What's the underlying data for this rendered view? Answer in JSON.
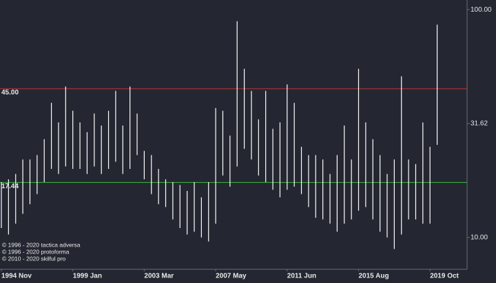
{
  "chart_data": {
    "type": "range-bar",
    "log_scale": true,
    "color": "#ffffff",
    "categories": [
      "1994 Nov",
      null,
      null,
      null,
      null,
      null,
      null,
      null,
      null,
      null,
      "1999 Jan",
      null,
      null,
      null,
      null,
      null,
      null,
      null,
      null,
      null,
      "2003 Mar",
      null,
      null,
      null,
      null,
      null,
      null,
      null,
      null,
      null,
      "2007 May",
      null,
      null,
      null,
      null,
      null,
      null,
      null,
      null,
      null,
      "2011 Jun",
      null,
      null,
      null,
      null,
      null,
      null,
      null,
      null,
      null,
      "2015 Aug",
      null,
      null,
      null,
      null,
      null,
      null,
      null,
      null,
      null,
      "2019 Oct",
      null
    ],
    "high": [
      17.5,
      18,
      19,
      22,
      22,
      23,
      27,
      39,
      32,
      46,
      36,
      32,
      29,
      35,
      31,
      36,
      44,
      31,
      46,
      35,
      24,
      23,
      20,
      18,
      17.5,
      17,
      16,
      17.5,
      15,
      17.5,
      37,
      36,
      28,
      89,
      55,
      44,
      33,
      44,
      30,
      32,
      47,
      39,
      25,
      23,
      23,
      22,
      19,
      23,
      31,
      22,
      55,
      32,
      27,
      23,
      19,
      22,
      51,
      22,
      21,
      32,
      25,
      86
    ],
    "low": [
      11,
      10.3,
      11.5,
      12.7,
      14,
      15.5,
      17.5,
      20,
      19,
      20.5,
      20,
      20,
      19,
      20.5,
      19,
      20,
      21.5,
      19,
      20,
      23,
      18,
      15.5,
      14,
      13.6,
      12,
      11,
      10.3,
      10.6,
      10,
      9.6,
      11.5,
      18.7,
      16.7,
      20.5,
      24.5,
      22,
      18.7,
      17.5,
      16.2,
      15,
      16.2,
      16.7,
      15.5,
      13.6,
      12.2,
      12,
      11.5,
      10.6,
      11.5,
      12,
      13.1,
      13.6,
      12,
      10.6,
      10,
      8.9,
      10.3,
      12,
      12,
      11.5,
      11.5,
      25.5
    ],
    "ylim": [
      7.25,
      110.3
    ],
    "yticks": [
      {
        "value": 100,
        "label": "100.00"
      },
      {
        "value": 31.62,
        "label": "31.62"
      },
      {
        "value": 10,
        "label": "10.00"
      }
    ],
    "levels": [
      {
        "value": 45,
        "label": "45.00",
        "color": "#c8323c"
      },
      {
        "value": 17.44,
        "label": "17.44",
        "color": "#3cbf3c"
      }
    ],
    "notes": [
      "© 1996 - 2020 tactica adversa",
      "© 1996 - 2020 protoforma",
      "© 2010 - 2020 skilful pro"
    ]
  }
}
